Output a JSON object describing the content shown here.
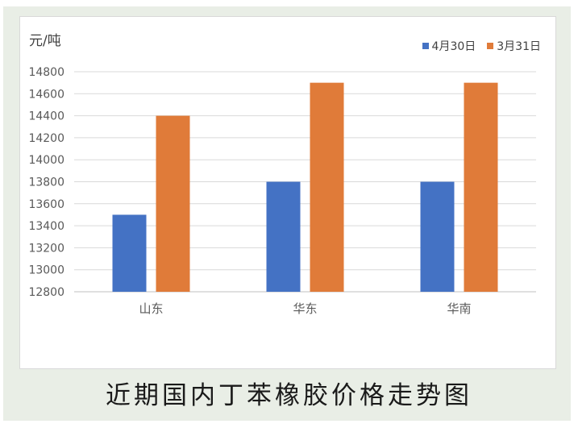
{
  "caption": "近期国内丁苯橡胶价格走势图",
  "chart_data": {
    "type": "bar",
    "title": "",
    "ylabel": "元/吨",
    "xlabel": "",
    "categories": [
      "山东",
      "华东",
      "华南"
    ],
    "series": [
      {
        "name": "4月30日",
        "values": [
          13500,
          13800,
          13800
        ],
        "color": "#4472c4"
      },
      {
        "name": "3月31日",
        "values": [
          14400,
          14700,
          14700
        ],
        "color": "#e07b39"
      }
    ],
    "ylim": [
      12800,
      14800
    ],
    "yticks": [
      12800,
      13000,
      13200,
      13400,
      13600,
      13800,
      14000,
      14200,
      14400,
      14600,
      14800
    ],
    "grid": true,
    "legend_position": "top-right"
  }
}
